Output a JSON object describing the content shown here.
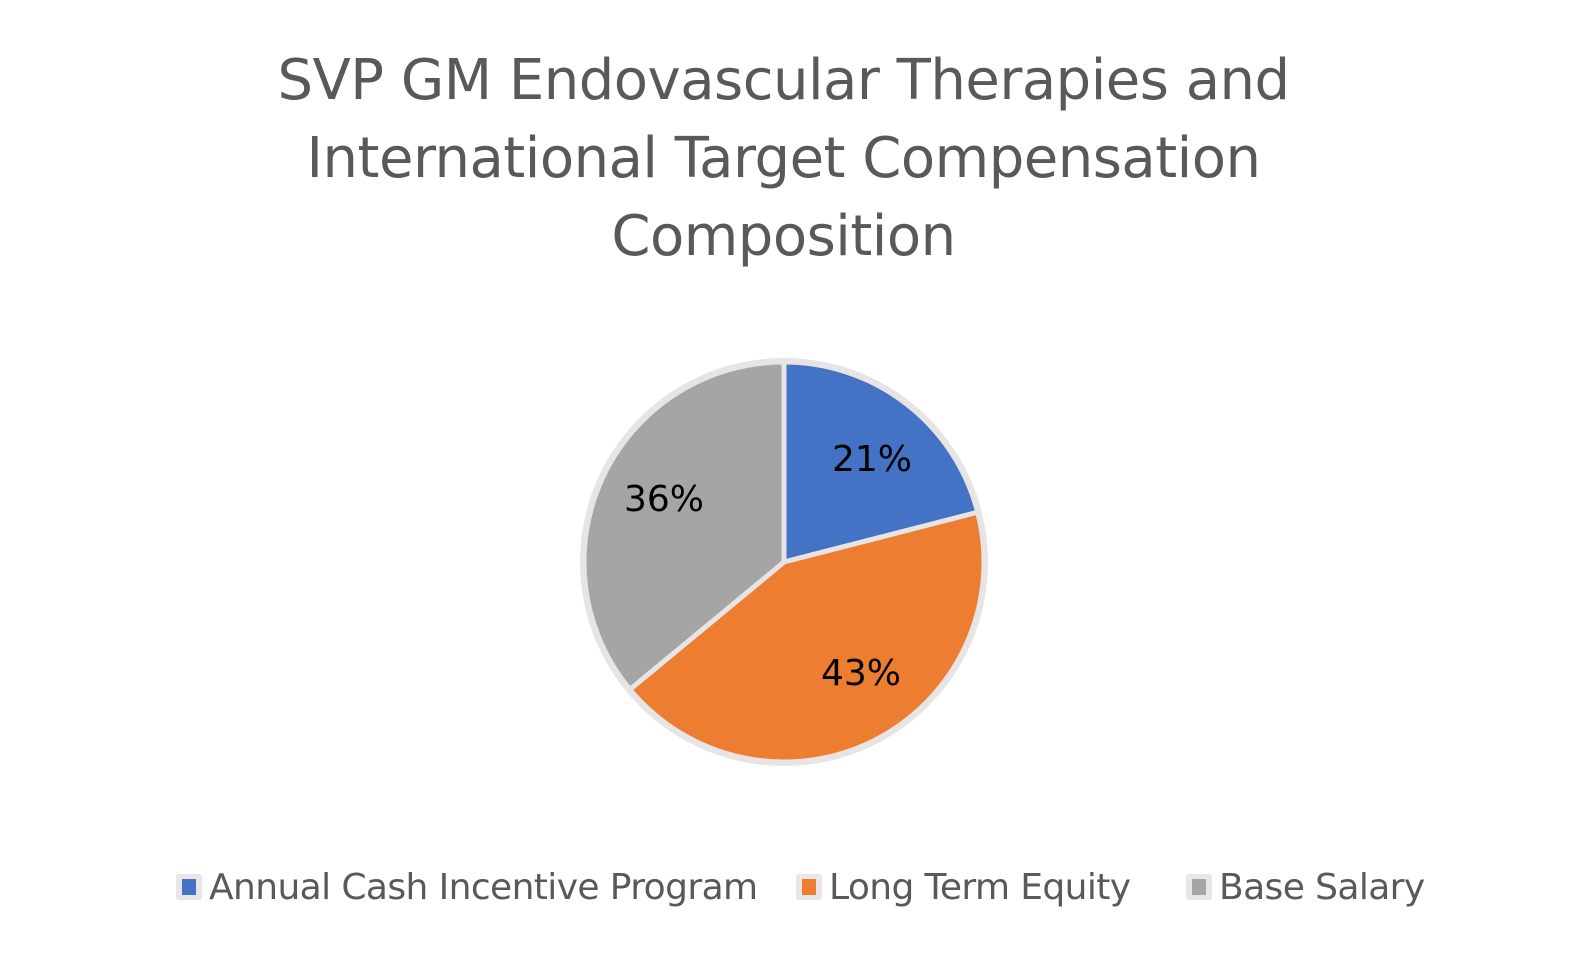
{
  "chart_data": {
    "type": "pie",
    "title": "SVP GM Endovascular Therapies and International Target Compensation Composition",
    "title_lines": [
      "SVP GM Endovascular Therapies and",
      "International Target Compensation",
      "Composition"
    ],
    "categories": [
      "Annual Cash Incentive Program",
      "Long Term Equity",
      "Base Salary"
    ],
    "values": [
      21,
      43,
      36
    ],
    "labels": [
      "21%",
      "43%",
      "36%"
    ],
    "colors": [
      "#4472c4",
      "#ed7d31",
      "#a5a5a5"
    ],
    "legend_position": "bottom",
    "start_angle_deg": 0,
    "direction": "clockwise"
  },
  "legend": {
    "items": [
      {
        "label": "Annual Cash Incentive Program",
        "color": "#4472c4"
      },
      {
        "label": "Long Term Equity",
        "color": "#ed7d31"
      },
      {
        "label": "Base Salary",
        "color": "#a5a5a5"
      }
    ]
  }
}
